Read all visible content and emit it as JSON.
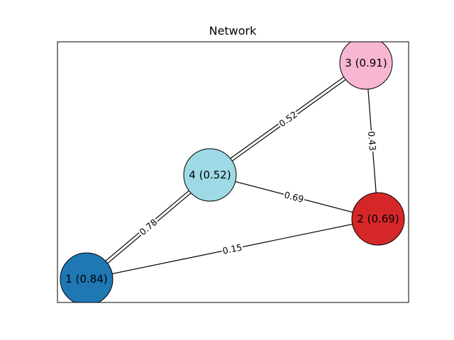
{
  "title": "Network",
  "nodes": [
    {
      "id": "1",
      "label": "1 (0.84)",
      "color": "#1f77b4"
    },
    {
      "id": "2",
      "label": "2 (0.69)",
      "color": "#d62728"
    },
    {
      "id": "3",
      "label": "3 (0.91)",
      "color": "#f7b6d2"
    },
    {
      "id": "4",
      "label": "4 (0.52)",
      "color": "#9edae5"
    }
  ],
  "edges": [
    {
      "source": "1",
      "target": "4",
      "label": "0.78",
      "double": true
    },
    {
      "source": "4",
      "target": "3",
      "label": "0.52",
      "double": true
    },
    {
      "source": "3",
      "target": "2",
      "label": "0.43",
      "double": false
    },
    {
      "source": "4",
      "target": "2",
      "label": "0.69",
      "double": false
    },
    {
      "source": "1",
      "target": "2",
      "label": "0.15",
      "double": false
    }
  ]
}
